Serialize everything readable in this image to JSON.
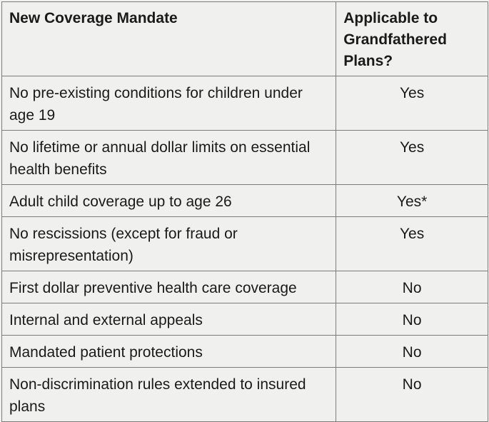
{
  "table": {
    "headers": {
      "mandate": "New Coverage Mandate",
      "applicable": "Applicable to Grandfathered Plans?"
    },
    "rows": [
      {
        "mandate": "No pre-existing conditions for children under age 19",
        "applicable": "Yes"
      },
      {
        "mandate": "No lifetime or annual dollar limits on essential health benefits",
        "applicable": "Yes"
      },
      {
        "mandate": "Adult child coverage up to age 26",
        "applicable": "Yes*"
      },
      {
        "mandate": "No rescissions (except for fraud or misrepresentation)",
        "applicable": "Yes"
      },
      {
        "mandate": "First dollar preventive health care coverage",
        "applicable": "No"
      },
      {
        "mandate": "Internal and external appeals",
        "applicable": "No"
      },
      {
        "mandate": "Mandated patient protections",
        "applicable": "No"
      },
      {
        "mandate": "Non-discrimination rules extended to insured plans",
        "applicable": "No"
      }
    ]
  }
}
